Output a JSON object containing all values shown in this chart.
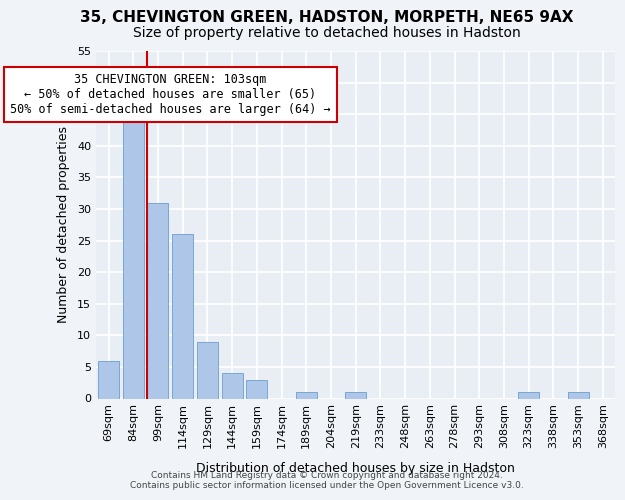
{
  "title1": "35, CHEVINGTON GREEN, HADSTON, MORPETH, NE65 9AX",
  "title2": "Size of property relative to detached houses in Hadston",
  "xlabel": "Distribution of detached houses by size in Hadston",
  "ylabel": "Number of detached properties",
  "categories": [
    "69sqm",
    "84sqm",
    "99sqm",
    "114sqm",
    "129sqm",
    "144sqm",
    "159sqm",
    "174sqm",
    "189sqm",
    "204sqm",
    "219sqm",
    "233sqm",
    "248sqm",
    "263sqm",
    "278sqm",
    "293sqm",
    "308sqm",
    "323sqm",
    "338sqm",
    "353sqm",
    "368sqm"
  ],
  "values": [
    6,
    46,
    31,
    26,
    9,
    4,
    3,
    0,
    1,
    0,
    1,
    0,
    0,
    0,
    0,
    0,
    0,
    1,
    0,
    1,
    0
  ],
  "bar_color": "#aec6e8",
  "bar_edge_color": "#6a9fd0",
  "subject_bar_index": 2,
  "subject_line_color": "#cc0000",
  "annotation_line1": "35 CHEVINGTON GREEN: 103sqm",
  "annotation_line2": "← 50% of detached houses are smaller (65)",
  "annotation_line3": "50% of semi-detached houses are larger (64) →",
  "annotation_box_edge": "#cc0000",
  "ylim": [
    0,
    55
  ],
  "yticks": [
    0,
    5,
    10,
    15,
    20,
    25,
    30,
    35,
    40,
    45,
    50,
    55
  ],
  "bg_color": "#e8eef4",
  "grid_color": "#ffffff",
  "footer": "Contains HM Land Registry data © Crown copyright and database right 2024.\nContains public sector information licensed under the Open Government Licence v3.0.",
  "title1_fontsize": 11,
  "title2_fontsize": 10,
  "xlabel_fontsize": 9,
  "ylabel_fontsize": 9,
  "tick_fontsize": 8,
  "annot_fontsize": 8.5,
  "fig_bg": "#f0f4f8"
}
